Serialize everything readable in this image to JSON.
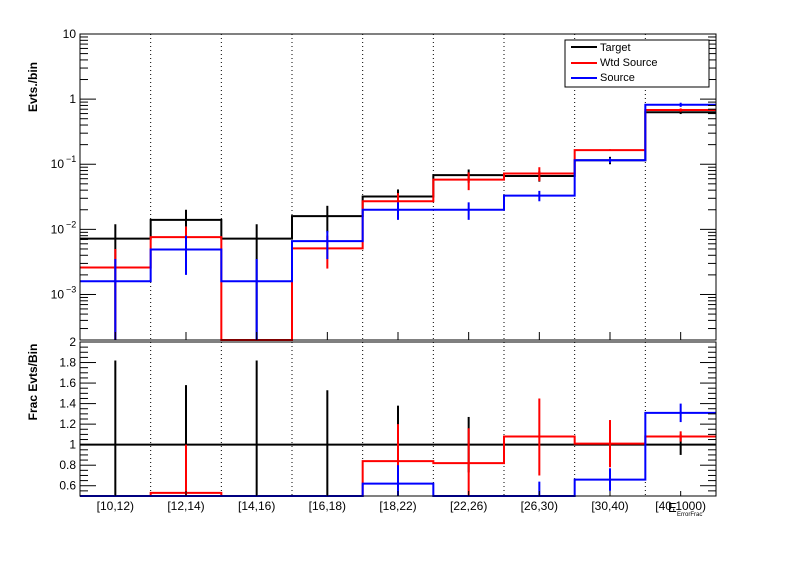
{
  "chart_data": [
    {
      "type": "step-histogram",
      "yscale": "log",
      "ylabel": "Evts./bin",
      "ylim": [
        0.0002,
        10
      ],
      "y_ticks": [
        {
          "value": 10,
          "label": "10"
        },
        {
          "value": 1,
          "label": "1"
        },
        {
          "value": 0.1,
          "label": "10",
          "exp": "−1"
        },
        {
          "value": 0.01,
          "label": "10",
          "exp": "−2"
        },
        {
          "value": 0.001,
          "label": "10",
          "exp": "−3"
        }
      ],
      "categories": [
        "[10,12)",
        "[12,14)",
        "[14,16)",
        "[16,18)",
        "[18,22)",
        "[22,26)",
        "[26,30)",
        "[30,40)",
        "[40,1000)"
      ],
      "legend": {
        "placement": "top-right",
        "entries": [
          "Target",
          "Wtd Source",
          "Source"
        ]
      },
      "series": [
        {
          "name": "Target",
          "color": "#000000",
          "values": [
            0.0072,
            0.014,
            0.0072,
            0.016,
            0.032,
            0.068,
            0.066,
            0.115,
            0.63
          ],
          "err_lo": [
            1e-05,
            0.011,
            1e-05,
            0.009,
            0.02,
            0.052,
            0.054,
            0.1,
            0.59
          ],
          "err_hi": [
            0.012,
            0.02,
            0.012,
            0.023,
            0.041,
            0.083,
            0.078,
            0.13,
            0.67
          ]
        },
        {
          "name": "Wtd Source",
          "color": "#ff0000",
          "values": [
            0.0026,
            0.0076,
            1e-05,
            0.0051,
            0.027,
            0.058,
            0.072,
            0.165,
            0.68
          ],
          "err_lo": [
            1e-05,
            0.004,
            1e-05,
            0.0025,
            0.018,
            0.04,
            0.055,
            0.16,
            0.64
          ],
          "err_hi": [
            0.005,
            0.011,
            1e-05,
            0.008,
            0.036,
            0.075,
            0.09,
            0.17,
            0.72
          ]
        },
        {
          "name": "Source",
          "color": "#0000ff",
          "values": [
            0.0016,
            0.0049,
            0.0016,
            0.0066,
            0.02,
            0.02,
            0.033,
            0.115,
            0.82
          ],
          "err_lo": [
            1e-05,
            0.002,
            1e-05,
            0.0035,
            0.014,
            0.014,
            0.027,
            0.105,
            0.76
          ],
          "err_hi": [
            0.0035,
            0.008,
            0.0035,
            0.0095,
            0.026,
            0.026,
            0.039,
            0.125,
            0.88
          ]
        }
      ]
    },
    {
      "type": "step-histogram",
      "yscale": "linear",
      "ylabel": "Frac Evts/Bin",
      "ylim": [
        0.5,
        2.0
      ],
      "y_ticks": [
        {
          "value": 2,
          "label": "2"
        },
        {
          "value": 1.8,
          "label": "1.8"
        },
        {
          "value": 1.6,
          "label": "1.6"
        },
        {
          "value": 1.4,
          "label": "1.4"
        },
        {
          "value": 1.2,
          "label": "1.2"
        },
        {
          "value": 1.0,
          "label": "1"
        },
        {
          "value": 0.8,
          "label": "0.8"
        },
        {
          "value": 0.6,
          "label": "0.6"
        }
      ],
      "categories": [
        "[10,12)",
        "[12,14)",
        "[14,16)",
        "[16,18)",
        "[18,22)",
        "[22,26)",
        "[26,30)",
        "[30,40)",
        "[40,1000)"
      ],
      "xlabel": "E",
      "xlabel_sub": "ErrorFrac",
      "series": [
        {
          "name": "Target",
          "color": "#000000",
          "values": [
            1,
            1,
            1,
            1,
            1,
            1,
            1,
            1,
            1
          ],
          "err_lo": [
            0.5,
            0.5,
            0.5,
            0.5,
            0.62,
            0.73,
            1,
            1,
            0.9
          ],
          "err_hi": [
            1.82,
            1.58,
            1.82,
            1.53,
            1.38,
            1.27,
            1,
            1,
            1.1
          ]
        },
        {
          "name": "Wtd Source",
          "color": "#ff0000",
          "values": [
            0.45,
            0.53,
            0.45,
            0.45,
            0.84,
            0.82,
            1.08,
            1.01,
            1.08
          ],
          "err_lo": [
            0.45,
            0.5,
            0.45,
            0.45,
            0.5,
            0.5,
            0.7,
            0.78,
            1.03
          ],
          "err_hi": [
            0.45,
            1.0,
            0.45,
            0.45,
            1.2,
            1.16,
            1.45,
            1.24,
            1.13
          ]
        },
        {
          "name": "Source",
          "color": "#0000ff",
          "values": [
            0.45,
            0.45,
            0.45,
            0.45,
            0.62,
            0.45,
            0.45,
            0.66,
            1.31
          ],
          "err_lo": [
            0.45,
            0.45,
            0.45,
            0.45,
            0.5,
            0.45,
            0.5,
            0.55,
            1.22
          ],
          "err_hi": [
            0.45,
            0.45,
            0.45,
            0.45,
            0.8,
            0.45,
            0.64,
            0.77,
            1.4
          ]
        }
      ]
    }
  ]
}
